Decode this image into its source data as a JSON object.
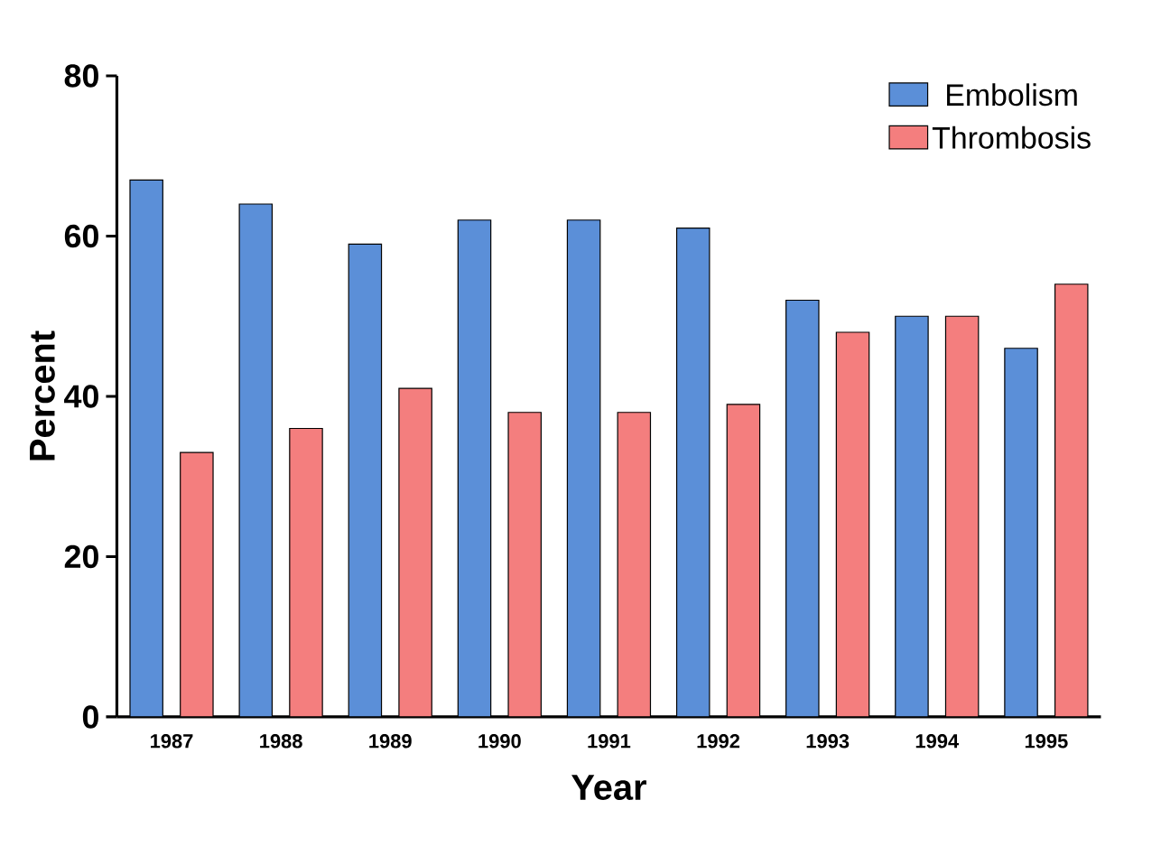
{
  "chart_data": {
    "type": "bar",
    "xlabel": "Year",
    "ylabel": "Percent",
    "categories": [
      "1987",
      "1988",
      "1989",
      "1990",
      "1991",
      "1992",
      "1993",
      "1994",
      "1995"
    ],
    "series": [
      {
        "name": "Embolism",
        "color": "#5b8fd8",
        "values": [
          67,
          64,
          59,
          62,
          62,
          61,
          52,
          50,
          46
        ]
      },
      {
        "name": "Thrombosis",
        "color": "#f47e7e",
        "values": [
          33,
          36,
          41,
          38,
          38,
          39,
          48,
          50,
          54
        ]
      }
    ],
    "ylim": [
      0,
      80
    ],
    "yticks": [
      0,
      20,
      40,
      60,
      80
    ],
    "grid": false,
    "legend": "top right"
  }
}
